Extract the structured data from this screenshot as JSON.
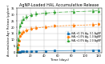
{
  "chart_data": {
    "type": "line",
    "title": "AgNP-Loaded HAL Accumulative Release",
    "xlabel": "Time (days)",
    "ylabel": "Accumulative Ag+ Release (μg/cm²)",
    "x": [
      0,
      1,
      2,
      3,
      5,
      7,
      10,
      14,
      21,
      28,
      42,
      56,
      84,
      112,
      120
    ],
    "series": [
      {
        "name": "HAL+0.1% Ag, 0.1 AgNP",
        "values": [
          0,
          0.3,
          0.45,
          0.55,
          0.65,
          0.75,
          0.85,
          0.95,
          1.05,
          1.15,
          1.3,
          1.4,
          1.55,
          1.65,
          1.75
        ],
        "yerr": [
          0,
          0.15,
          0.15,
          0.1,
          0.1,
          0.1,
          0.1,
          0.15,
          0.15,
          0.15,
          0.15,
          0.2,
          0.2,
          0.2,
          0.2
        ],
        "marker": "square",
        "line_style": "solid"
      },
      {
        "name": "HAL+1.0% Ag, 1.0 AgNP",
        "values": [
          0,
          2.5,
          6.0,
          9.5,
          13.0,
          15.0,
          16.5,
          17.5,
          18.8,
          19.5,
          20.2,
          21.0,
          21.5,
          22.0,
          22.3
        ],
        "yerr": [
          0,
          0.5,
          0.8,
          1.0,
          1.0,
          1.0,
          1.0,
          1.0,
          1.0,
          1.2,
          1.2,
          1.2,
          1.2,
          1.2,
          1.2
        ],
        "marker": "circle",
        "line_style": "dashed"
      },
      {
        "name": "HAL+2.0% Ag, 2.0 AgNP",
        "values": [
          0,
          4.5,
          10.0,
          16.0,
          21.0,
          24.0,
          26.5,
          28.0,
          29.5,
          30.5,
          31.2,
          31.8,
          32.3,
          32.8,
          33.0
        ],
        "yerr": [
          0,
          0.8,
          1.2,
          1.5,
          1.5,
          1.5,
          1.5,
          1.5,
          1.5,
          1.5,
          1.5,
          1.5,
          1.5,
          1.5,
          1.5
        ],
        "marker": "triangle",
        "line_style": "dashdot"
      }
    ],
    "xlim": [
      0,
      125
    ],
    "ylim": [
      0,
      35
    ],
    "xticks": [
      0,
      20,
      40,
      60,
      80,
      100,
      120
    ],
    "yticks": [
      0,
      5,
      10,
      15,
      20,
      25,
      30,
      35
    ],
    "grid": true,
    "legend": "center right"
  }
}
